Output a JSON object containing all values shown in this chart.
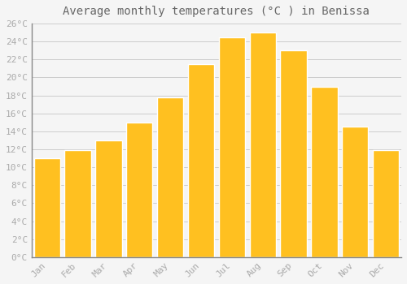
{
  "months": [
    "Jan",
    "Feb",
    "Mar",
    "Apr",
    "May",
    "Jun",
    "Jul",
    "Aug",
    "Sep",
    "Oct",
    "Nov",
    "Dec"
  ],
  "temperatures": [
    11.0,
    11.9,
    13.0,
    15.0,
    17.8,
    21.5,
    24.5,
    25.0,
    23.0,
    19.0,
    14.5,
    11.9
  ],
  "bar_color_face": "#FFC020",
  "bar_color_edge": "#FFFFFF",
  "background_color": "#F5F5F5",
  "grid_color": "#CCCCCC",
  "title": "Average monthly temperatures (°C ) in Benissa",
  "title_fontsize": 10,
  "title_color": "#666666",
  "tick_label_color": "#AAAAAA",
  "axis_label_fontsize": 8,
  "ylim": [
    0,
    26
  ],
  "ytick_step": 2,
  "ylabel_suffix": "°C"
}
